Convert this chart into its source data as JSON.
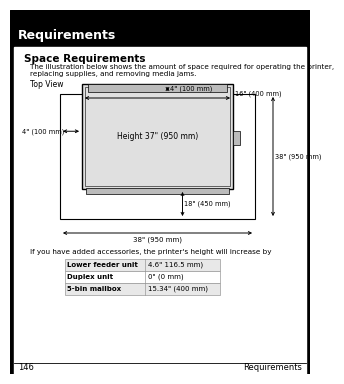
{
  "title": "Requirements",
  "subtitle": "Space Requirements",
  "description_line1": "The illustration below shows the amount of space required for operating the printer,",
  "description_line2": "replacing supplies, and removing media jams.",
  "top_view_label": "Top View",
  "center_label": "Height 37\" (950 mm)",
  "dim_top": "4\" (100 mm)",
  "dim_right_inner": "16\" (400 mm)",
  "dim_left": "4\" (100 mm)",
  "dim_right_outer": "38\" (950 mm)",
  "dim_bottom_inner": "18\" (450 mm)",
  "dim_bottom_outer": "38\" (950 mm)",
  "footer_note": "If you have added accessories, the printer's height will increase by",
  "table_rows": [
    [
      "Lower feeder unit",
      "4.6\" 116.5 mm)"
    ],
    [
      "Duplex unit",
      "0\" (0 mm)"
    ],
    [
      "5-bin mailbox",
      "15.34\" (400 mm)"
    ]
  ],
  "page_number": "146",
  "page_label": "Requirements",
  "bg_color": "#ffffff",
  "black": "#000000",
  "light_gray": "#e0e0e0",
  "mid_gray": "#bbbbbb"
}
